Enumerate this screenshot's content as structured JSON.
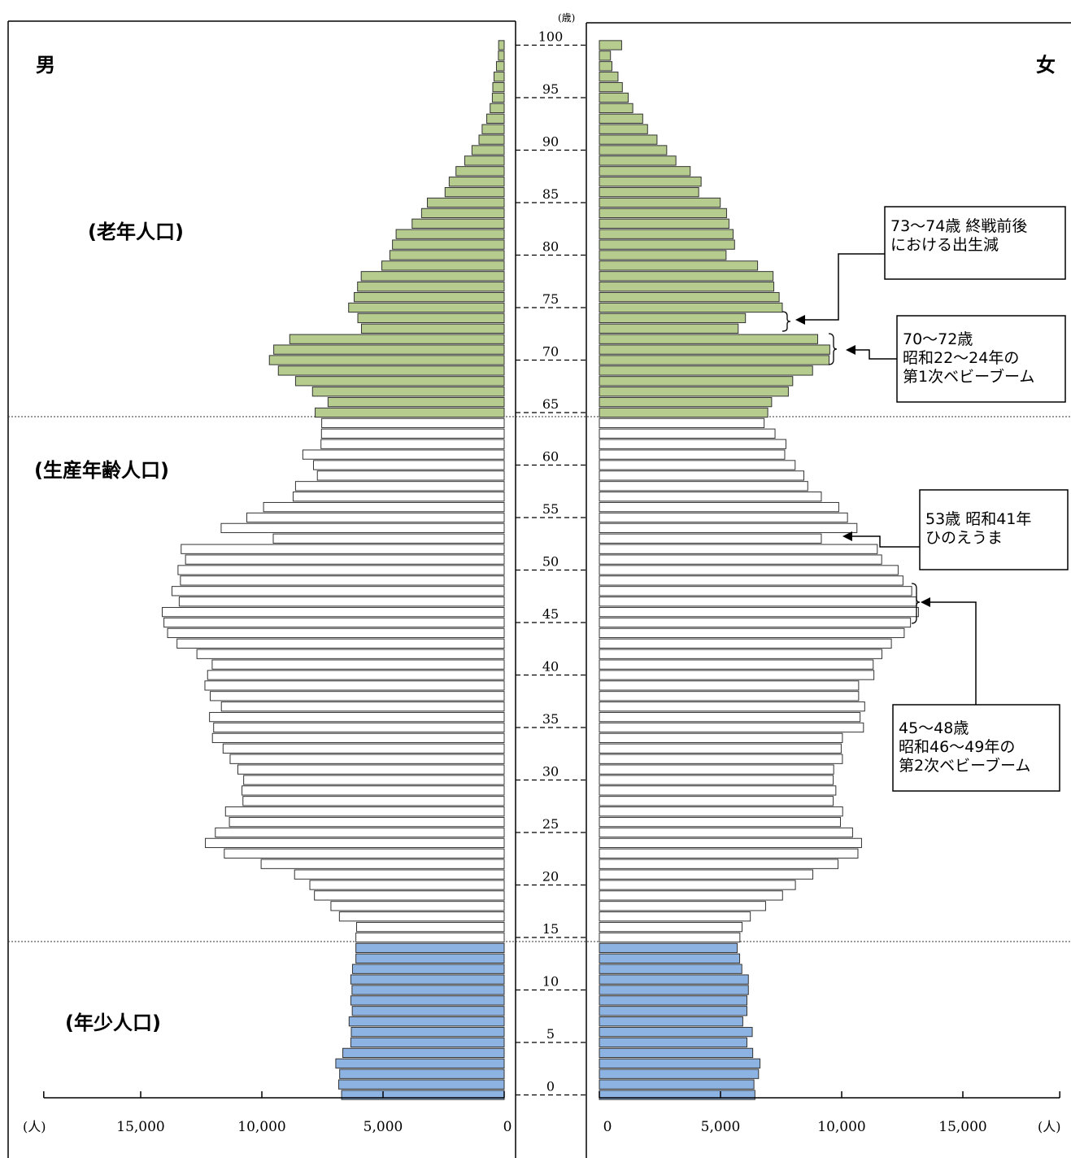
{
  "labels": {
    "male": "男",
    "female": "女",
    "age_unit": "(歳)",
    "people_unit_left": "(人)",
    "people_unit_right": "(人)",
    "group_elderly": "(老年人口)",
    "group_working": "(生産年齢人口)",
    "group_young": "(年少人口)"
  },
  "annotations": [
    {
      "lines": [
        "73～74歳 終戦前後",
        "における出生減"
      ]
    },
    {
      "lines": [
        "70～72歳",
        "昭和22～24年の",
        "第1次ベビーブーム"
      ]
    },
    {
      "lines": [
        "53歳 昭和41年",
        "ひのえうま"
      ]
    },
    {
      "lines": [
        "45～48歳",
        "昭和46～49年の",
        "第2次ベビーブーム"
      ]
    }
  ],
  "colors": {
    "elderly": "#b5cc8e",
    "working": "#ffffff",
    "young": "#8db3e2",
    "outline": "#333333"
  },
  "chart_data": {
    "type": "bar",
    "orientation": "horizontal",
    "subtype": "population-pyramid",
    "x_axis_ticks": [
      "0",
      "5,000",
      "10,000",
      "15,000"
    ],
    "x_tick_values": [
      0,
      5000,
      10000,
      15000
    ],
    "xlim": [
      0,
      19000
    ],
    "age_ticks": [
      "0",
      "5",
      "10",
      "15",
      "20",
      "25",
      "30",
      "35",
      "40",
      "45",
      "50",
      "55",
      "60",
      "65",
      "70",
      "75",
      "80",
      "85",
      "90",
      "95",
      "100"
    ],
    "ages": [
      0,
      1,
      2,
      3,
      4,
      5,
      6,
      7,
      8,
      9,
      10,
      11,
      12,
      13,
      14,
      15,
      16,
      17,
      18,
      19,
      20,
      21,
      22,
      23,
      24,
      25,
      26,
      27,
      28,
      29,
      30,
      31,
      32,
      33,
      34,
      35,
      36,
      37,
      38,
      39,
      40,
      41,
      42,
      43,
      44,
      45,
      46,
      47,
      48,
      49,
      50,
      51,
      52,
      53,
      54,
      55,
      56,
      57,
      58,
      59,
      60,
      61,
      62,
      63,
      64,
      65,
      66,
      67,
      68,
      69,
      70,
      71,
      72,
      73,
      74,
      75,
      76,
      77,
      78,
      79,
      80,
      81,
      82,
      83,
      84,
      85,
      86,
      87,
      88,
      89,
      90,
      91,
      92,
      93,
      94,
      95,
      96,
      97,
      98,
      99,
      100
    ],
    "groups": [
      {
        "name": "年少人口",
        "ages": [
          0,
          14
        ]
      },
      {
        "name": "生産年齢人口",
        "ages": [
          15,
          64
        ]
      },
      {
        "name": "老年人口",
        "ages": [
          65,
          100
        ]
      }
    ],
    "series": [
      {
        "name": "男",
        "values": [
          6710,
          6830,
          6790,
          6950,
          6660,
          6330,
          6310,
          6400,
          6270,
          6330,
          6280,
          6330,
          6260,
          6120,
          6120,
          6120,
          6090,
          6800,
          7150,
          7830,
          8020,
          8650,
          10030,
          11550,
          12330,
          11920,
          11340,
          11500,
          10780,
          10820,
          10750,
          10990,
          11310,
          11600,
          12040,
          11990,
          12160,
          11670,
          12130,
          12350,
          12240,
          12050,
          12680,
          13500,
          13890,
          14040,
          14110,
          13410,
          13710,
          13360,
          13460,
          13150,
          13330,
          9530,
          11680,
          10620,
          9930,
          8710,
          8610,
          7710,
          7870,
          8310,
          7560,
          7540,
          7530,
          7800,
          7270,
          7910,
          8610,
          9320,
          9690,
          9510,
          8850,
          5890,
          6040,
          6420,
          6190,
          6050,
          5900,
          5050,
          4720,
          4610,
          4460,
          3800,
          3410,
          3170,
          2440,
          2270,
          1990,
          1630,
          1330,
          1040,
          910,
          720,
          580,
          490,
          470,
          420,
          320,
          240,
          230
        ]
      },
      {
        "name": "女",
        "values": [
          6420,
          6380,
          6570,
          6630,
          6330,
          6090,
          6310,
          5920,
          6090,
          6090,
          6150,
          6150,
          5880,
          5790,
          5690,
          5800,
          5890,
          6230,
          6860,
          7560,
          8090,
          8810,
          9850,
          10670,
          10820,
          10450,
          9950,
          10040,
          9650,
          9760,
          9650,
          9670,
          10030,
          9980,
          10030,
          10900,
          10760,
          10950,
          10700,
          10700,
          11330,
          11300,
          11660,
          12050,
          12580,
          12840,
          13170,
          13080,
          12890,
          12530,
          12330,
          11650,
          11470,
          9160,
          10630,
          10240,
          9880,
          9160,
          8600,
          8440,
          8080,
          7650,
          7700,
          7250,
          6800,
          6950,
          7110,
          7800,
          7980,
          8800,
          9480,
          9510,
          9010,
          5730,
          6030,
          7550,
          7420,
          7200,
          7170,
          6530,
          5230,
          5580,
          5520,
          5350,
          5250,
          4990,
          4100,
          4200,
          3750,
          3160,
          2780,
          2380,
          1990,
          1790,
          1380,
          1190,
          950,
          770,
          520,
          460,
          920
        ]
      }
    ]
  }
}
